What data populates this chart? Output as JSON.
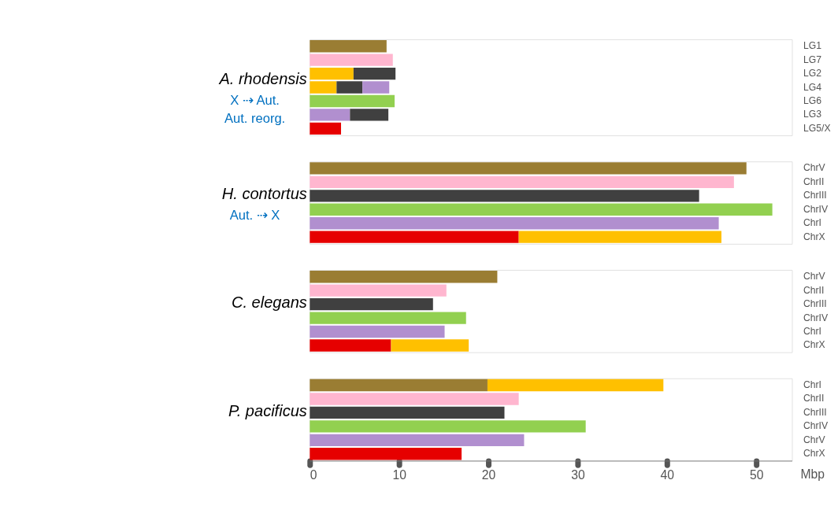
{
  "chart_data": [
    {
      "type": "bar",
      "orientation": "horizontal",
      "stacked": true,
      "title": "A. rhodensis",
      "annotations": [
        "X ⇢ Aut.",
        "Aut. reorg."
      ],
      "tick_labels": "y",
      "xlim": [
        0,
        54
      ],
      "categories": [
        "LG1",
        "LG7",
        "LG2",
        "LG4",
        "LG6",
        "LG3",
        "LG5/X"
      ],
      "series": [
        {
          "colors": [
            "#9a7d33",
            "#ffb6cf",
            "#ffc000",
            "#ffc000",
            "#92d050",
            "#b18fcf",
            "#e60000"
          ],
          "values": [
            8.6,
            9.3,
            4.9,
            3.0,
            9.5,
            4.5,
            3.5
          ]
        },
        {
          "colors": [
            null,
            null,
            "#404040",
            "#404040",
            null,
            "#404040",
            null
          ],
          "values": [
            null,
            null,
            4.7,
            2.9,
            null,
            4.3,
            null
          ]
        },
        {
          "colors": [
            null,
            null,
            null,
            "#b18fcf",
            null,
            null,
            null
          ],
          "values": [
            null,
            null,
            null,
            3.0,
            null,
            null,
            null
          ]
        }
      ]
    },
    {
      "type": "bar",
      "orientation": "horizontal",
      "stacked": true,
      "title": "H. contortus",
      "annotations": [
        "Aut. ⇢ X"
      ],
      "tick_labels": "y",
      "xlim": [
        0,
        54
      ],
      "categories": [
        "ChrV",
        "ChrII",
        "ChrIII",
        "ChrIV",
        "ChrI",
        "ChrX"
      ],
      "series": [
        {
          "colors": [
            "#9a7d33",
            "#ffb6cf",
            "#404040",
            "#92d050",
            "#b18fcf",
            "#e60000"
          ],
          "values": [
            48.9,
            47.5,
            43.6,
            51.8,
            45.8,
            23.4
          ]
        },
        {
          "colors": [
            null,
            null,
            null,
            null,
            null,
            "#ffc000"
          ],
          "values": [
            null,
            null,
            null,
            null,
            null,
            22.7
          ]
        }
      ]
    },
    {
      "type": "bar",
      "orientation": "horizontal",
      "stacked": true,
      "title": "C. elegans",
      "tick_labels": "y",
      "xlim": [
        0,
        54
      ],
      "categories": [
        "ChrV",
        "ChrII",
        "ChrIII",
        "ChrIV",
        "ChrI",
        "ChrX"
      ],
      "series": [
        {
          "colors": [
            "#9a7d33",
            "#ffb6cf",
            "#404040",
            "#92d050",
            "#b18fcf",
            "#e60000"
          ],
          "values": [
            21.0,
            15.3,
            13.8,
            17.5,
            15.1,
            9.1
          ]
        },
        {
          "colors": [
            null,
            null,
            null,
            null,
            null,
            "#ffc000"
          ],
          "values": [
            null,
            null,
            null,
            null,
            null,
            8.7
          ]
        }
      ]
    },
    {
      "type": "bar",
      "orientation": "horizontal",
      "stacked": true,
      "title": "P. pacificus",
      "xlabel": "Mbp",
      "xlim": [
        0,
        54
      ],
      "xticks": [
        0,
        10,
        20,
        30,
        40,
        50
      ],
      "categories": [
        "ChrI",
        "ChrII",
        "ChrIII",
        "ChrIV",
        "ChrV",
        "ChrX"
      ],
      "series": [
        {
          "colors": [
            "#9a7d33",
            "#ffb6cf",
            "#404040",
            "#92d050",
            "#b18fcf",
            "#e60000"
          ],
          "values": [
            19.9,
            23.4,
            21.8,
            30.9,
            24.0,
            17.0
          ]
        },
        {
          "colors": [
            "#ffc000",
            null,
            null,
            null,
            null,
            null
          ],
          "values": [
            19.7,
            null,
            null,
            null,
            null,
            null
          ]
        }
      ]
    }
  ]
}
